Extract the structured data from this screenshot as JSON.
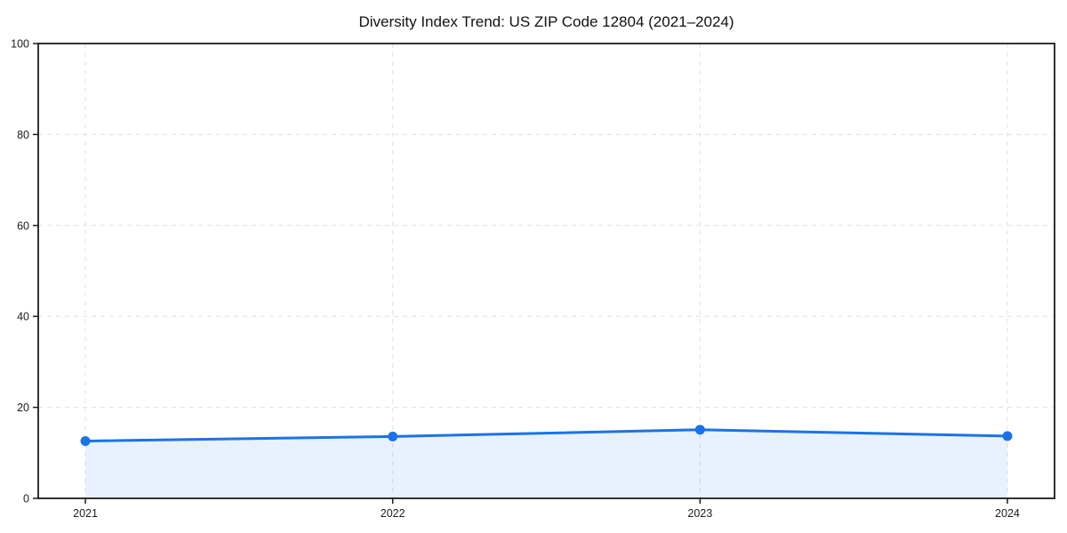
{
  "chart_data": {
    "type": "line",
    "title": "Diversity Index Trend: US ZIP Code 12804 (2021–2024)",
    "x": [
      "2021",
      "2022",
      "2023",
      "2024"
    ],
    "series": [
      {
        "name": "Diversity Index",
        "values": [
          12.6,
          13.6,
          15.1,
          13.7
        ]
      }
    ],
    "xlabel": "",
    "ylabel": "",
    "ylim": [
      0,
      100
    ],
    "yticks": [
      0,
      20,
      40,
      60,
      80,
      100
    ],
    "grid": true,
    "grid_style": "dashed",
    "area_fill": true,
    "legend_position": "none",
    "colors": {
      "line": "#1a73e8",
      "marker": "#1a73e8",
      "fill": "#1a73e8",
      "fill_opacity": 0.1,
      "grid": "#e2e2e2",
      "spine": "#1c1c1c",
      "tick": "#1c1c1c",
      "title": "#111111"
    }
  }
}
